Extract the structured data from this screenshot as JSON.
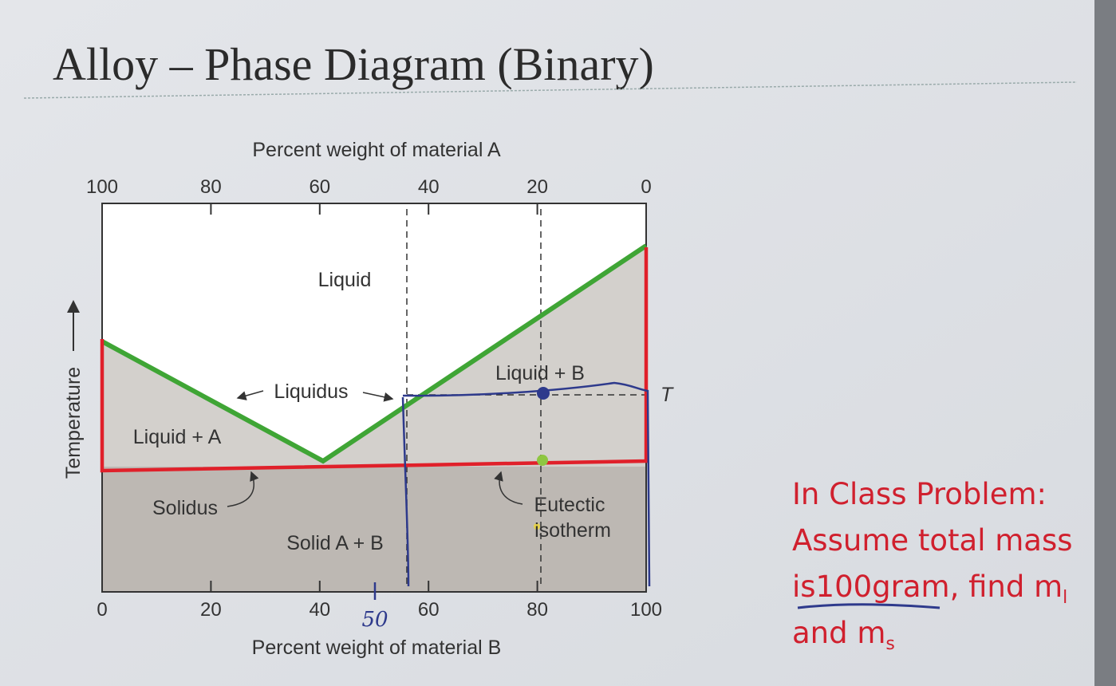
{
  "header": {
    "title": "Alloy – Phase Diagram (Binary)"
  },
  "diagram": {
    "top_axis": {
      "label": "Percent weight of material A",
      "ticks": [
        100,
        80,
        60,
        40,
        20,
        0
      ]
    },
    "bottom_axis": {
      "label": "Percent weight of material B",
      "ticks": [
        0,
        20,
        40,
        60,
        80,
        100
      ]
    },
    "y_axis": {
      "label": "Temperature"
    },
    "regions": [
      "Liquid",
      "Liquid + B",
      "Liquid + A",
      "Solid A + B"
    ],
    "curves": [
      "Liquidus",
      "Solidus"
    ],
    "isotherm": [
      "Eutectic",
      "isotherm"
    ],
    "temperature_mark": "T",
    "handwritten": "50"
  },
  "problem": {
    "lines": [
      {
        "text": "In Class Problem:"
      },
      {
        "text": "Assume total mass"
      },
      {
        "text": "is100gram, find m",
        "sub": "l"
      },
      {
        "text": "and m",
        "sub": "s"
      }
    ]
  }
}
